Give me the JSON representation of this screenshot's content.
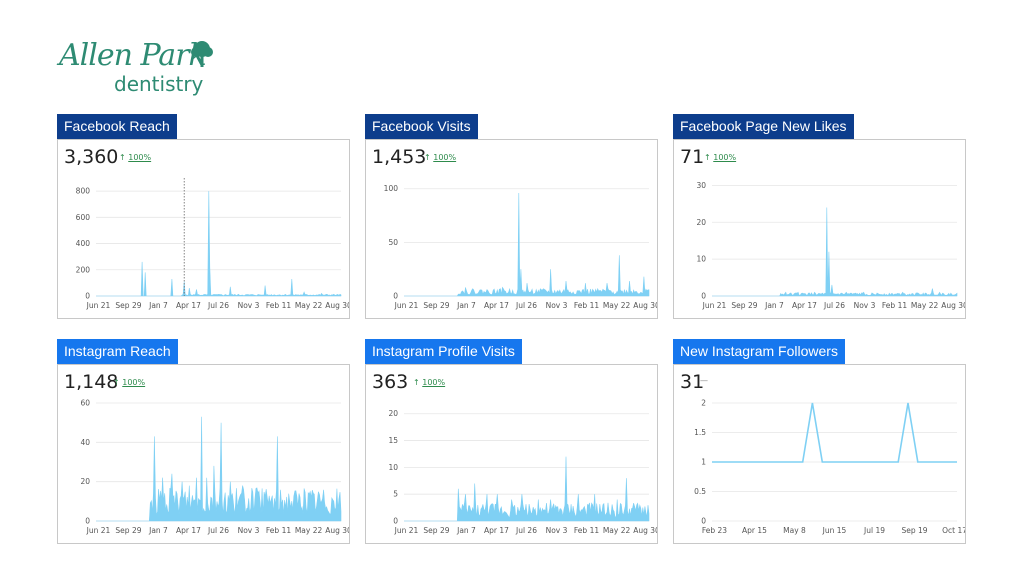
{
  "logo": {
    "line1": "Allen Park",
    "line2": "dentistry",
    "color": "#2e8b73"
  },
  "colors": {
    "facebook_header": "#0d3d8c",
    "instagram_header": "#1677ee",
    "series": "#7fd0f4",
    "trend_up": "#2e8b4c"
  },
  "panels": [
    {
      "title": "Facebook Reach",
      "kpi": "3,360",
      "trend": "100%",
      "trend_dir": "up"
    },
    {
      "title": "Facebook Visits",
      "kpi": "1,453",
      "trend": "100%",
      "trend_dir": "up"
    },
    {
      "title": "Facebook Page New Likes",
      "kpi": "71",
      "trend": "100%",
      "trend_dir": "up"
    },
    {
      "title": "Instagram Reach",
      "kpi": "1,148",
      "trend": "100%",
      "trend_dir": "up"
    },
    {
      "title": "Instagram Profile Visits",
      "kpi": "363",
      "trend": "100%",
      "trend_dir": "up"
    },
    {
      "title": "New Instagram Followers",
      "kpi": "31",
      "trend": "—",
      "trend_dir": "flat"
    }
  ],
  "chart_data": [
    {
      "type": "area",
      "ylim": [
        0,
        900
      ],
      "yticks": [
        "0",
        "200",
        "400",
        "600",
        "800"
      ],
      "x": [
        "Jun 21",
        "Sep 29",
        "Jan 7",
        "Apr 17",
        "Jul 26",
        "Nov 3",
        "Feb 11",
        "May 22",
        "Aug 30"
      ],
      "start_zero": 0.35,
      "baseline": 8,
      "spikes": [
        [
          0.19,
          260
        ],
        [
          0.2,
          180
        ],
        [
          0.31,
          130
        ],
        [
          0.36,
          110
        ],
        [
          0.38,
          60
        ],
        [
          0.41,
          50
        ],
        [
          0.46,
          800
        ],
        [
          0.465,
          220
        ],
        [
          0.55,
          70
        ],
        [
          0.69,
          80
        ],
        [
          0.8,
          130
        ],
        [
          0.85,
          30
        ],
        [
          0.92,
          20
        ]
      ],
      "hover_line": 0.36
    },
    {
      "type": "area",
      "ylim": [
        0,
        110
      ],
      "yticks": [
        "0",
        "50",
        "100"
      ],
      "x": [
        "Jun 21",
        "Sep 29",
        "Jan 7",
        "Apr 17",
        "Jul 26",
        "Nov 3",
        "Feb 11",
        "May 22",
        "Aug 30"
      ],
      "start_zero": 0.22,
      "baseline": 4,
      "spikes": [
        [
          0.25,
          8
        ],
        [
          0.4,
          8
        ],
        [
          0.47,
          96
        ],
        [
          0.475,
          25
        ],
        [
          0.5,
          12
        ],
        [
          0.6,
          25
        ],
        [
          0.66,
          14
        ],
        [
          0.74,
          12
        ],
        [
          0.83,
          12
        ],
        [
          0.88,
          38
        ],
        [
          0.92,
          14
        ],
        [
          0.98,
          18
        ]
      ]
    },
    {
      "type": "area",
      "ylim": [
        0,
        32
      ],
      "yticks": [
        "0",
        "10",
        "20",
        "30"
      ],
      "x": [
        "Jun 21",
        "Sep 29",
        "Jan 7",
        "Apr 17",
        "Jul 26",
        "Nov 3",
        "Feb 11",
        "May 22",
        "Aug 30"
      ],
      "start_zero": 0.28,
      "baseline": 0.5,
      "spikes": [
        [
          0.3,
          1
        ],
        [
          0.35,
          1
        ],
        [
          0.42,
          1
        ],
        [
          0.47,
          24
        ],
        [
          0.475,
          12
        ],
        [
          0.49,
          3
        ],
        [
          0.55,
          1
        ],
        [
          0.62,
          1
        ],
        [
          0.78,
          1
        ],
        [
          0.9,
          2
        ],
        [
          0.93,
          1
        ]
      ]
    },
    {
      "type": "area",
      "ylim": [
        0,
        60
      ],
      "yticks": [
        "0",
        "20",
        "40",
        "60"
      ],
      "x": [
        "Jun 21",
        "Sep 29",
        "Jan 7",
        "Apr 17",
        "Jul 26",
        "Nov 3",
        "Feb 11",
        "May 22",
        "Aug 30"
      ],
      "start_zero": 0.22,
      "baseline": 10,
      "spikes": [
        [
          0.24,
          43
        ],
        [
          0.27,
          22
        ],
        [
          0.31,
          24
        ],
        [
          0.35,
          20
        ],
        [
          0.38,
          18
        ],
        [
          0.41,
          22
        ],
        [
          0.43,
          53
        ],
        [
          0.45,
          22
        ],
        [
          0.48,
          28
        ],
        [
          0.51,
          50
        ],
        [
          0.55,
          20
        ],
        [
          0.6,
          18
        ],
        [
          0.66,
          14
        ],
        [
          0.7,
          12
        ],
        [
          0.74,
          43
        ],
        [
          0.79,
          10
        ],
        [
          0.85,
          8
        ],
        [
          0.92,
          7
        ]
      ]
    },
    {
      "type": "area",
      "ylim": [
        0,
        22
      ],
      "yticks": [
        "0",
        "5",
        "10",
        "15",
        "20"
      ],
      "x": [
        "Jun 21",
        "Sep 29",
        "Jan 7",
        "Apr 17",
        "Jul 26",
        "Nov 3",
        "Feb 11",
        "May 22",
        "Aug 30"
      ],
      "start_zero": 0.22,
      "baseline": 2,
      "spikes": [
        [
          0.22,
          6
        ],
        [
          0.25,
          5
        ],
        [
          0.29,
          7
        ],
        [
          0.34,
          5
        ],
        [
          0.38,
          5
        ],
        [
          0.44,
          4
        ],
        [
          0.48,
          5
        ],
        [
          0.55,
          4
        ],
        [
          0.6,
          4
        ],
        [
          0.66,
          12
        ],
        [
          0.71,
          5
        ],
        [
          0.78,
          5
        ],
        [
          0.87,
          4
        ],
        [
          0.91,
          8
        ],
        [
          0.95,
          3
        ]
      ]
    },
    {
      "type": "line",
      "ylim": [
        0,
        2
      ],
      "yticks": [
        "0",
        "0.5",
        "1",
        "1.5",
        "2"
      ],
      "x": [
        "Feb 23",
        "Apr 15",
        "May 8",
        "Jun 15",
        "Jul 19",
        "Sep 19",
        "Oct 17"
      ],
      "points": [
        [
          0,
          1
        ],
        [
          0.37,
          1
        ],
        [
          0.41,
          2
        ],
        [
          0.45,
          1
        ],
        [
          0.76,
          1
        ],
        [
          0.8,
          2
        ],
        [
          0.84,
          1
        ],
        [
          1,
          1
        ]
      ]
    }
  ]
}
